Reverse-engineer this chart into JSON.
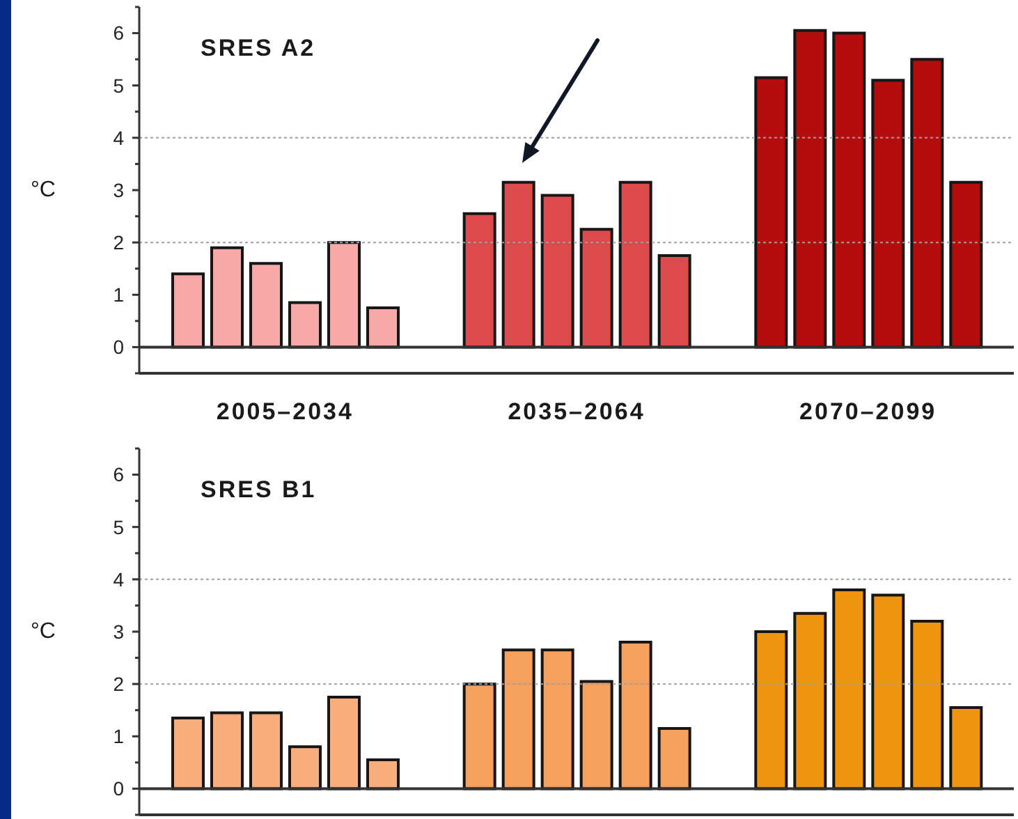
{
  "chart_data": [
    {
      "type": "bar",
      "title": "SRES A2",
      "ylabel": "°C",
      "categories": [
        "2005–2034",
        "2035–2064",
        "2070–2099"
      ],
      "series": [
        {
          "colors": [
            "#f7a9a9",
            "#dc4a4e",
            "#b30d0d"
          ],
          "values": [
            1.4,
            2.55,
            5.15
          ]
        },
        {
          "colors": [
            "#f7a9a9",
            "#dc4a4e",
            "#b30d0d"
          ],
          "values": [
            1.9,
            3.15,
            6.05
          ]
        },
        {
          "colors": [
            "#f7a9a9",
            "#dc4a4e",
            "#b30d0d"
          ],
          "values": [
            1.6,
            2.9,
            6.0
          ]
        },
        {
          "colors": [
            "#f7a9a9",
            "#dc4a4e",
            "#b30d0d"
          ],
          "values": [
            0.85,
            2.25,
            5.1
          ]
        },
        {
          "colors": [
            "#f7a9a9",
            "#dc4a4e",
            "#b30d0d"
          ],
          "values": [
            2.0,
            3.15,
            5.5
          ]
        },
        {
          "colors": [
            "#f7a9a9",
            "#dc4a4e",
            "#b30d0d"
          ],
          "values": [
            0.75,
            1.75,
            3.15
          ]
        }
      ],
      "ylim": [
        -0.5,
        6.5
      ],
      "yticks": [
        {
          "value": -0.5,
          "label": null
        },
        0,
        {
          "value": 0.5,
          "label": null
        },
        1,
        {
          "value": 1.5,
          "label": null
        },
        2,
        {
          "value": 2.5,
          "label": null
        },
        3,
        {
          "value": 3.5,
          "label": null
        },
        4,
        {
          "value": 4.5,
          "label": null
        },
        5,
        {
          "value": 5.5,
          "label": null
        },
        6,
        {
          "value": 6.5,
          "label": null
        }
      ],
      "ref_lines": [
        {
          "axis": "y",
          "value": 0,
          "color": "#333333",
          "line_style": "solid"
        },
        {
          "axis": "y",
          "value": 2,
          "color": "#a0a0a0",
          "line_style": "dotted"
        },
        {
          "axis": "y",
          "value": 4,
          "color": "#a0a0a0",
          "line_style": "dotted"
        }
      ]
    },
    {
      "type": "bar",
      "title": "SRES B1",
      "ylabel": "°C",
      "categories": [
        null,
        null,
        null
      ],
      "series": [
        {
          "colors": [
            "#f9ad7c",
            "#f6a060",
            "#ee950f"
          ],
          "values": [
            1.35,
            2.0,
            3.0
          ]
        },
        {
          "colors": [
            "#f9ad7c",
            "#f6a060",
            "#ee950f"
          ],
          "values": [
            1.45,
            2.65,
            3.35
          ]
        },
        {
          "colors": [
            "#f9ad7c",
            "#f6a060",
            "#ee950f"
          ],
          "values": [
            1.45,
            2.65,
            3.8
          ]
        },
        {
          "colors": [
            "#f9ad7c",
            "#f6a060",
            "#ee950f"
          ],
          "values": [
            0.8,
            2.05,
            3.7
          ]
        },
        {
          "colors": [
            "#f9ad7c",
            "#f6a060",
            "#ee950f"
          ],
          "values": [
            1.75,
            2.8,
            3.2
          ]
        },
        {
          "colors": [
            "#f9ad7c",
            "#f6a060",
            "#ee950f"
          ],
          "values": [
            0.55,
            1.15,
            1.55
          ]
        }
      ],
      "ylim": [
        -0.5,
        6.5
      ],
      "yticks": [
        {
          "value": -0.5,
          "label": null
        },
        0,
        {
          "value": 0.5,
          "label": null
        },
        1,
        {
          "value": 1.5,
          "label": null
        },
        2,
        {
          "value": 2.5,
          "label": null
        },
        3,
        {
          "value": 3.5,
          "label": null
        },
        4,
        {
          "value": 4.5,
          "label": null
        },
        5,
        {
          "value": 5.5,
          "label": null
        },
        6,
        {
          "value": 6.5,
          "label": null
        }
      ],
      "ref_lines": [
        {
          "axis": "y",
          "value": 0,
          "color": "#333333",
          "line_style": "solid"
        },
        {
          "axis": "y",
          "value": 2,
          "color": "#a0a0a0",
          "line_style": "dotted"
        },
        {
          "axis": "y",
          "value": 4,
          "color": "#a0a0a0",
          "line_style": "dotted"
        }
      ]
    }
  ]
}
